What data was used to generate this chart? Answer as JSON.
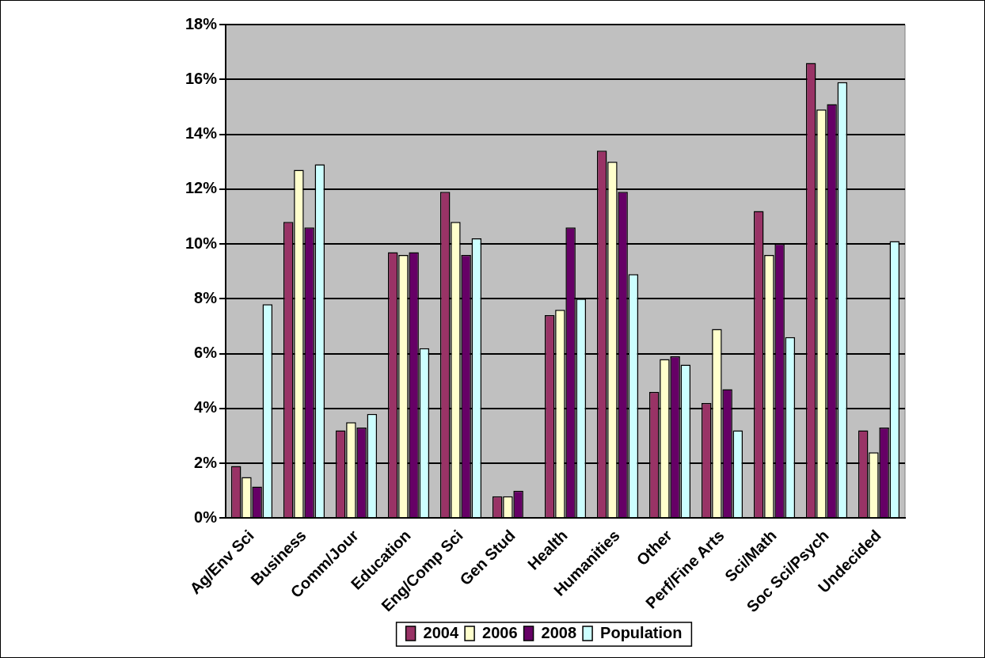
{
  "chart_data": {
    "type": "bar",
    "categories": [
      "Ag/Env Sci",
      "Business",
      "Comm/Jour",
      "Education",
      "Eng/Comp Sci",
      "Gen Stud",
      "Health",
      "Humanities",
      "Other",
      "Perf/Fine Arts",
      "Sci/Math",
      "Soc Sci/Psych",
      "Undecided"
    ],
    "series": [
      {
        "name": "2004",
        "color": "#993366",
        "values": [
          1.9,
          10.8,
          3.2,
          9.7,
          11.9,
          0.8,
          7.4,
          13.4,
          4.6,
          4.2,
          11.2,
          16.6,
          3.2
        ]
      },
      {
        "name": "2006",
        "color": "#ffffcc",
        "values": [
          1.5,
          12.7,
          3.5,
          9.6,
          10.8,
          0.8,
          7.6,
          13.0,
          5.8,
          6.9,
          9.6,
          14.9,
          2.4
        ]
      },
      {
        "name": "2008",
        "color": "#660066",
        "values": [
          1.15,
          10.6,
          3.3,
          9.7,
          9.6,
          1.0,
          10.6,
          11.9,
          5.9,
          4.7,
          10.0,
          15.1,
          3.3
        ]
      },
      {
        "name": "Population",
        "color": "#ccffff",
        "values": [
          7.8,
          12.9,
          3.8,
          6.2,
          10.2,
          0,
          8.0,
          8.9,
          5.6,
          3.2,
          6.6,
          15.9,
          10.1
        ]
      }
    ],
    "ylim": [
      0,
      18
    ],
    "yticks": [
      {
        "value": 0,
        "label": "0%"
      },
      {
        "value": 2,
        "label": "2%"
      },
      {
        "value": 4,
        "label": "4%"
      },
      {
        "value": 6,
        "label": "6%"
      },
      {
        "value": 8,
        "label": "8%"
      },
      {
        "value": 10,
        "label": "10%"
      },
      {
        "value": 12,
        "label": "12%"
      },
      {
        "value": 14,
        "label": "14%"
      },
      {
        "value": 16,
        "label": "16%"
      },
      {
        "value": 18,
        "label": "18%"
      }
    ],
    "grid": "y",
    "legend": "bottom"
  }
}
